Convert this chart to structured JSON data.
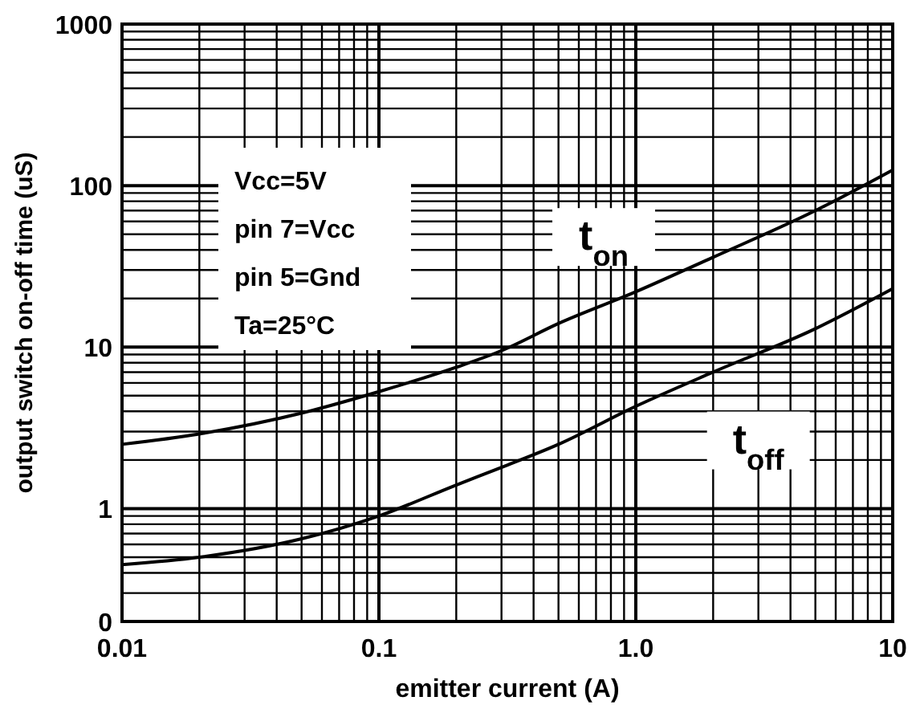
{
  "chart_data": {
    "type": "line",
    "xlabel": "emitter current (A)",
    "ylabel": "output switch on-off time (uS)",
    "log": "xy",
    "grid": true,
    "xlim": [
      0.01,
      10
    ],
    "ylim": [
      0.2,
      1000
    ],
    "xticks": [
      0.01,
      0.1,
      {
        "value": 1,
        "label": "1.0"
      },
      10
    ],
    "yticks": [
      {
        "value": 0.2,
        "label": "0"
      },
      1,
      10,
      100,
      1000
    ],
    "x": [
      0.01,
      0.02,
      0.05,
      0.1,
      0.2,
      0.3,
      0.5,
      1,
      2,
      5,
      10
    ],
    "series": [
      {
        "name": "t$_{on}$",
        "color": "#000000",
        "values": [
          2.5,
          2.9,
          3.9,
          5.3,
          7.5,
          9.5,
          14,
          22,
          36,
          70,
          125
        ]
      },
      {
        "name": "t$_{off}$",
        "color": "#000000",
        "values": [
          0.45,
          0.5,
          0.65,
          0.9,
          1.4,
          1.8,
          2.5,
          4.3,
          7,
          13,
          23
        ]
      }
    ],
    "annotations": [
      "Vcc=5V",
      "pin 7=Vcc",
      "pin 5=Gnd",
      "Ta=25°C"
    ]
  }
}
